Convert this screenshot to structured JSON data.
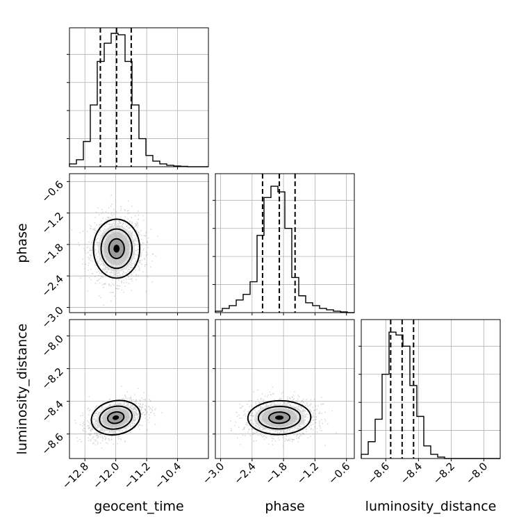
{
  "chart_data": {
    "type": "corner",
    "parameters": [
      "geocent_time",
      "phase",
      "luminosity_distance"
    ],
    "axis_labels": {
      "geocent_time": "geocent_time",
      "phase": "phase",
      "luminosity_distance": "luminosity_distance"
    },
    "ranges": {
      "geocent_time": [
        -13.2,
        -9.6
      ],
      "phase": [
        -3.1,
        -0.45
      ],
      "luminosity_distance": [
        -8.75,
        -7.9
      ]
    },
    "ticks": {
      "geocent_time": [
        "−12.8",
        "−12.0",
        "−11.2",
        "−10.4"
      ],
      "phase": [
        "−3.0",
        "−2.4",
        "−1.8",
        "−1.2",
        "−0.6"
      ],
      "luminosity_distance": [
        "−8.6",
        "−8.4",
        "−8.2",
        "−8.0"
      ]
    },
    "tick_values": {
      "geocent_time": [
        -12.8,
        -12.0,
        -11.2,
        -10.4
      ],
      "phase": [
        -3.0,
        -2.4,
        -1.8,
        -1.2,
        -0.6
      ],
      "luminosity_distance": [
        -8.6,
        -8.4,
        -8.2,
        -8.0
      ]
    },
    "histograms": {
      "geocent_time": {
        "edges": [
          -13.2,
          -13.02,
          -12.84,
          -12.66,
          -12.48,
          -12.3,
          -12.12,
          -11.94,
          -11.76,
          -11.58,
          -11.4,
          -11.22,
          -11.04,
          -10.86,
          -10.68,
          -10.5,
          -10.32,
          -10.14,
          -9.96,
          -9.78,
          -9.6
        ],
        "counts": [
          2,
          5,
          18,
          44,
          75,
          88,
          95,
          94,
          75,
          44,
          20,
          8,
          4,
          2,
          1,
          0.5,
          0.3,
          0,
          0,
          0
        ]
      },
      "phase": {
        "edges": [
          -3.1,
          -2.9675,
          -2.835,
          -2.7025,
          -2.57,
          -2.4375,
          -2.305,
          -2.1725,
          -2.04,
          -1.9075,
          -1.775,
          -1.6425,
          -1.51,
          -1.3775,
          -1.245,
          -1.1125,
          -0.98,
          -0.8475,
          -0.715,
          -0.5825,
          -0.45
        ],
        "counts": [
          1,
          3,
          5,
          9,
          13,
          22,
          55,
          82,
          90,
          86,
          60,
          25,
          12,
          7,
          5,
          3,
          2,
          1,
          0.5,
          0
        ]
      },
      "luminosity_distance": {
        "edges": [
          -8.75,
          -8.7075,
          -8.665,
          -8.6225,
          -8.58,
          -8.5375,
          -8.495,
          -8.4525,
          -8.41,
          -8.3675,
          -8.325,
          -8.2825,
          -8.24,
          -8.1975,
          -8.155,
          -8.1125,
          -8.07,
          -8.0275,
          -7.985,
          -7.9425,
          -7.9
        ],
        "counts": [
          3,
          12,
          28,
          60,
          90,
          88,
          80,
          52,
          30,
          9,
          3,
          1,
          0,
          0,
          0,
          0,
          0,
          0,
          0,
          0
        ]
      }
    },
    "quantiles": {
      "geocent_time": [
        -12.4,
        -11.98,
        -11.6
      ],
      "phase": [
        -2.2,
        -1.88,
        -1.58
      ],
      "luminosity_distance": [
        -8.57,
        -8.5,
        -8.43
      ]
    },
    "marginal_ymax": 100,
    "pairs": [
      {
        "x": "geocent_time",
        "y": "phase",
        "center": [
          -11.98,
          -1.88
        ],
        "std": [
          0.32,
          0.3
        ],
        "corr": 0.0,
        "contour_sigma": [
          0.5,
          1.0,
          1.5
        ]
      },
      {
        "x": "geocent_time",
        "y": "luminosity_distance",
        "center": [
          -12.0,
          -8.5
        ],
        "std": [
          0.34,
          0.055
        ],
        "corr": 0.45,
        "contour_sigma": [
          0.5,
          1.0,
          1.5
        ]
      },
      {
        "x": "phase",
        "y": "luminosity_distance",
        "center": [
          -1.88,
          -8.5
        ],
        "std": [
          0.32,
          0.055
        ],
        "corr": 0.05,
        "contour_sigma": [
          0.5,
          1.0,
          1.5
        ]
      }
    ],
    "grid": true,
    "xlabel_geocent_time": "geocent_time",
    "xlabel_phase": "phase",
    "xlabel_luminosity_distance": "luminosity_distance",
    "ylabel_phase": "phase",
    "ylabel_luminosity_distance": "luminosity_distance"
  }
}
